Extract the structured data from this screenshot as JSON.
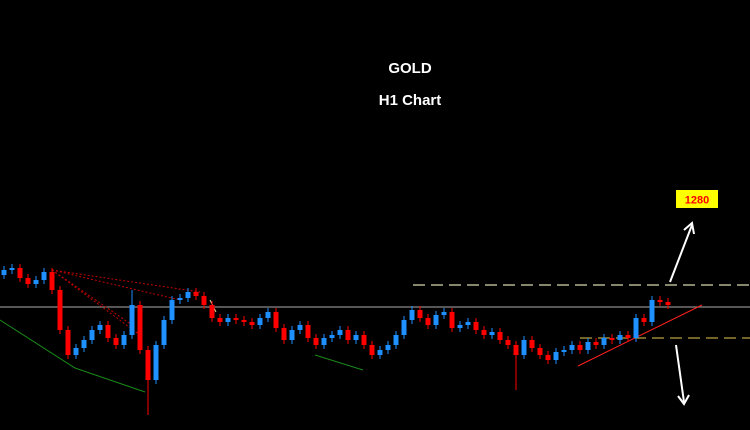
{
  "chart_data": {
    "type": "candlestick",
    "title": "GOLD",
    "subtitle": "H1 Chart",
    "annotation": "1280",
    "ylim": [
      1257,
      1300
    ],
    "up_color": "#1e90ff",
    "down_color": "#ff0000",
    "open": [
      1272.5,
      1273.0,
      1273.2,
      1272.2,
      1271.6,
      1272.0,
      1272.8,
      1271.0,
      1267.0,
      1264.5,
      1265.2,
      1266.0,
      1267.0,
      1267.5,
      1266.2,
      1265.5,
      1266.5,
      1269.5,
      1265.0,
      1262.0,
      1265.5,
      1268.0,
      1270.0,
      1270.2,
      1270.8,
      1270.4,
      1269.5,
      1268.2,
      1267.8,
      1268.2,
      1268.0,
      1267.8,
      1267.5,
      1268.2,
      1268.8,
      1267.2,
      1266.0,
      1267.0,
      1267.5,
      1266.2,
      1265.5,
      1266.2,
      1266.5,
      1267.0,
      1266.0,
      1266.5,
      1265.5,
      1264.5,
      1265.0,
      1265.5,
      1266.5,
      1268.0,
      1269.0,
      1268.2,
      1267.5,
      1268.5,
      1268.8,
      1267.2,
      1267.5,
      1267.8,
      1267.0,
      1266.5,
      1266.8,
      1266.0,
      1265.5,
      1264.5,
      1266.0,
      1265.2,
      1264.5,
      1264.0,
      1264.8,
      1265.0,
      1265.5,
      1265.0,
      1265.8,
      1265.5,
      1266.2,
      1266.0,
      1266.5,
      1266.2,
      1268.2,
      1267.8,
      1270.0,
      1269.8
    ],
    "high": [
      1273.4,
      1273.6,
      1273.6,
      1272.6,
      1272.4,
      1273.2,
      1273.2,
      1271.4,
      1267.4,
      1265.6,
      1266.4,
      1267.4,
      1267.9,
      1267.9,
      1266.6,
      1266.9,
      1271.0,
      1269.9,
      1265.4,
      1265.9,
      1268.4,
      1270.4,
      1270.6,
      1271.2,
      1271.2,
      1270.8,
      1269.9,
      1268.6,
      1268.6,
      1268.6,
      1268.4,
      1268.2,
      1268.6,
      1269.2,
      1269.2,
      1267.6,
      1267.4,
      1267.9,
      1267.9,
      1266.6,
      1266.6,
      1266.9,
      1267.4,
      1267.4,
      1266.9,
      1266.9,
      1265.9,
      1265.4,
      1265.9,
      1266.9,
      1268.4,
      1269.4,
      1269.4,
      1268.6,
      1268.9,
      1269.2,
      1269.2,
      1267.9,
      1268.2,
      1268.2,
      1267.4,
      1267.2,
      1267.2,
      1266.4,
      1265.9,
      1266.4,
      1266.4,
      1265.6,
      1264.9,
      1265.2,
      1265.4,
      1265.9,
      1265.9,
      1266.2,
      1266.2,
      1266.6,
      1266.6,
      1266.9,
      1266.9,
      1268.6,
      1268.6,
      1270.4,
      1270.4,
      1270.2
    ],
    "low": [
      1272.1,
      1272.6,
      1271.8,
      1271.2,
      1271.2,
      1271.6,
      1270.6,
      1266.6,
      1264.1,
      1264.1,
      1264.8,
      1265.6,
      1266.6,
      1265.8,
      1265.1,
      1265.1,
      1266.1,
      1264.6,
      1258.5,
      1261.6,
      1265.1,
      1267.6,
      1269.6,
      1269.8,
      1270.0,
      1269.1,
      1267.8,
      1267.4,
      1267.4,
      1267.6,
      1267.4,
      1267.1,
      1267.1,
      1267.8,
      1266.8,
      1265.6,
      1265.6,
      1266.6,
      1265.8,
      1265.1,
      1265.1,
      1265.8,
      1266.1,
      1265.6,
      1265.6,
      1265.1,
      1264.1,
      1264.1,
      1264.6,
      1265.1,
      1266.1,
      1267.6,
      1267.8,
      1267.1,
      1267.1,
      1268.1,
      1266.8,
      1266.8,
      1267.1,
      1266.6,
      1266.1,
      1266.1,
      1265.6,
      1265.1,
      1261.0,
      1264.1,
      1264.8,
      1264.1,
      1263.6,
      1263.6,
      1264.4,
      1264.6,
      1264.6,
      1264.6,
      1265.1,
      1265.1,
      1265.6,
      1265.6,
      1265.8,
      1265.8,
      1267.4,
      1267.4,
      1269.4,
      1269.1
    ],
    "close": [
      1273.0,
      1273.2,
      1272.2,
      1271.6,
      1272.0,
      1272.8,
      1271.0,
      1267.0,
      1264.5,
      1265.2,
      1266.0,
      1267.0,
      1267.5,
      1266.2,
      1265.5,
      1266.5,
      1269.5,
      1265.0,
      1262.0,
      1265.5,
      1268.0,
      1270.0,
      1270.2,
      1270.8,
      1270.4,
      1269.5,
      1268.2,
      1267.8,
      1268.2,
      1268.0,
      1267.8,
      1267.5,
      1268.2,
      1268.8,
      1267.2,
      1266.0,
      1267.0,
      1267.5,
      1266.2,
      1265.5,
      1266.2,
      1266.5,
      1267.0,
      1266.0,
      1266.5,
      1265.5,
      1264.5,
      1265.0,
      1265.5,
      1266.5,
      1268.0,
      1269.0,
      1268.2,
      1267.5,
      1268.5,
      1268.8,
      1267.2,
      1267.5,
      1267.8,
      1267.0,
      1266.5,
      1266.8,
      1266.0,
      1265.5,
      1264.5,
      1266.0,
      1265.2,
      1264.5,
      1264.0,
      1264.8,
      1265.0,
      1265.5,
      1265.0,
      1265.8,
      1265.5,
      1266.2,
      1266.0,
      1266.5,
      1266.2,
      1268.2,
      1267.8,
      1270.0,
      1269.8,
      1269.5
    ],
    "levels": [
      {
        "value": 1271.5,
        "color": "#d8d8b0",
        "style": "dashed"
      },
      {
        "value": 1269.3,
        "color": "#8a8a8a",
        "style": "solid"
      },
      {
        "value": 1266.2,
        "color": "#b8a040",
        "style": "dashed"
      }
    ]
  }
}
